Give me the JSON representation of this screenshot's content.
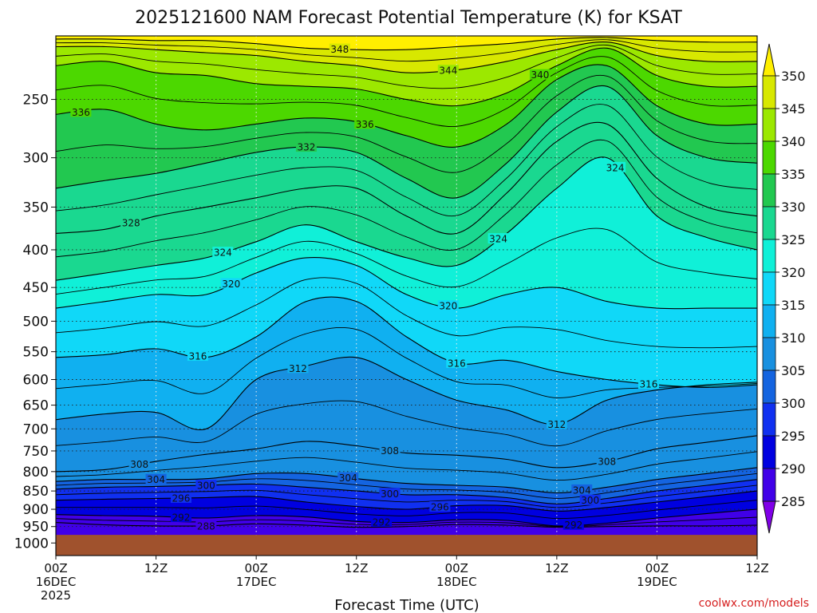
{
  "chart_data": {
    "type": "heatmap",
    "title": "2025121600 NAM Forecast Potential Temperature (K) for KSAT",
    "xlabel": "Forecast Time (UTC)",
    "ylabel": "",
    "y_scale": "log-pressure",
    "ylim": [
      1040,
      205
    ],
    "xlim": [
      0,
      84
    ],
    "y_ticks": [
      250,
      300,
      350,
      400,
      450,
      500,
      550,
      600,
      650,
      700,
      750,
      800,
      850,
      900,
      950,
      1000
    ],
    "x_ticks": [
      {
        "hour": 0,
        "lines": [
          "00Z",
          "16DEC",
          "2025"
        ]
      },
      {
        "hour": 12,
        "lines": [
          "12Z"
        ]
      },
      {
        "hour": 24,
        "lines": [
          "00Z",
          "17DEC"
        ]
      },
      {
        "hour": 36,
        "lines": [
          "12Z"
        ]
      },
      {
        "hour": 48,
        "lines": [
          "00Z",
          "18DEC"
        ]
      },
      {
        "hour": 60,
        "lines": [
          "12Z"
        ]
      },
      {
        "hour": 72,
        "lines": [
          "00Z",
          "19DEC"
        ]
      },
      {
        "hour": 84,
        "lines": [
          "12Z"
        ]
      }
    ],
    "grid": true,
    "surface_pressure": 975,
    "levels": [
      {
        "theta": 288,
        "p": [
          938,
          945,
          948,
          948,
          942,
          946,
          952,
          950,
          944,
          946,
          952,
          950,
          948,
          948,
          946
        ]
      },
      {
        "theta": 292,
        "p": [
          915,
          918,
          920,
          925,
          918,
          922,
          935,
          938,
          930,
          932,
          948,
          940,
          925,
          912,
          900
        ]
      },
      {
        "theta": 296,
        "p": [
          875,
          872,
          870,
          868,
          865,
          880,
          892,
          900,
          890,
          890,
          905,
          895,
          880,
          865,
          850
        ]
      },
      {
        "theta": 300,
        "p": [
          845,
          840,
          838,
          835,
          832,
          840,
          850,
          860,
          860,
          868,
          885,
          870,
          850,
          835,
          820
        ]
      },
      {
        "theta": 304,
        "p": [
          825,
          820,
          820,
          818,
          805,
          805,
          818,
          830,
          835,
          840,
          855,
          840,
          820,
          805,
          790
        ]
      },
      {
        "theta": 308,
        "p": [
          800,
          795,
          775,
          758,
          745,
          728,
          738,
          755,
          760,
          770,
          790,
          775,
          745,
          730,
          715
        ]
      },
      {
        "theta": 312,
        "p": [
          680,
          668,
          665,
          700,
          600,
          575,
          560,
          600,
          640,
          660,
          690,
          640,
          620,
          610,
          605
        ]
      },
      {
        "theta": 316,
        "p": [
          560,
          555,
          545,
          560,
          525,
          470,
          470,
          525,
          570,
          565,
          585,
          600,
          610,
          615,
          610
        ]
      },
      {
        "theta": 320,
        "p": [
          480,
          470,
          460,
          460,
          430,
          410,
          420,
          460,
          480,
          460,
          450,
          470,
          480,
          480,
          480
        ]
      },
      {
        "theta": 324,
        "p": [
          440,
          430,
          420,
          410,
          390,
          370,
          390,
          410,
          420,
          380,
          330,
          300,
          360,
          385,
          400
        ]
      },
      {
        "theta": 328,
        "p": [
          380,
          375,
          360,
          350,
          340,
          330,
          330,
          360,
          380,
          335,
          285,
          270,
          320,
          350,
          360
        ]
      },
      {
        "theta": 332,
        "p": [
          330,
          322,
          315,
          305,
          295,
          290,
          295,
          320,
          340,
          305,
          260,
          240,
          280,
          300,
          305
        ]
      },
      {
        "theta": 336,
        "p": [
          262,
          258,
          270,
          275,
          270,
          265,
          268,
          280,
          290,
          270,
          235,
          225,
          255,
          270,
          270
        ]
      },
      {
        "theta": 340,
        "p": [
          225,
          222,
          230,
          232,
          238,
          240,
          242,
          250,
          255,
          245,
          225,
          213,
          232,
          240,
          240
        ]
      },
      {
        "theta": 344,
        "p": [
          212,
          212,
          214,
          216,
          218,
          222,
          225,
          230,
          228,
          222,
          214,
          209,
          218,
          222,
          222
        ]
      },
      {
        "theta": 348,
        "p": [
          207,
          207,
          208,
          208,
          210,
          213,
          214,
          214,
          212,
          210,
          207,
          206,
          208,
          209,
          209
        ]
      }
    ],
    "contour_labels": [
      {
        "text": "348",
        "hour": 34,
        "theta": 348
      },
      {
        "text": "344",
        "hour": 47,
        "theta": 344
      },
      {
        "text": "340",
        "hour": 58,
        "theta": 340
      },
      {
        "text": "336",
        "hour": 3,
        "theta": 336
      },
      {
        "text": "336",
        "hour": 37,
        "theta": 336
      },
      {
        "text": "332",
        "hour": 30,
        "theta": 332
      },
      {
        "text": "328",
        "hour": 9,
        "theta": 328
      },
      {
        "text": "324",
        "hour": 20,
        "theta": 324
      },
      {
        "text": "324",
        "hour": 53,
        "theta": 324
      },
      {
        "text": "324",
        "hour": 67,
        "theta": 324
      },
      {
        "text": "320",
        "hour": 21,
        "theta": 320
      },
      {
        "text": "320",
        "hour": 47,
        "theta": 320
      },
      {
        "text": "316",
        "hour": 17,
        "theta": 316
      },
      {
        "text": "316",
        "hour": 48,
        "theta": 316
      },
      {
        "text": "316",
        "hour": 71,
        "theta": 316
      },
      {
        "text": "312",
        "hour": 29,
        "theta": 312
      },
      {
        "text": "312",
        "hour": 60,
        "theta": 312
      },
      {
        "text": "308",
        "hour": 10,
        "theta": 308
      },
      {
        "text": "308",
        "hour": 40,
        "theta": 308
      },
      {
        "text": "308",
        "hour": 66,
        "theta": 308
      },
      {
        "text": "304",
        "hour": 12,
        "theta": 304
      },
      {
        "text": "304",
        "hour": 35,
        "theta": 304
      },
      {
        "text": "304",
        "hour": 63,
        "theta": 304
      },
      {
        "text": "300",
        "hour": 18,
        "theta": 300
      },
      {
        "text": "300",
        "hour": 40,
        "theta": 300
      },
      {
        "text": "300",
        "hour": 64,
        "theta": 300
      },
      {
        "text": "296",
        "hour": 15,
        "theta": 296
      },
      {
        "text": "296",
        "hour": 46,
        "theta": 296
      },
      {
        "text": "292",
        "hour": 15,
        "theta": 292
      },
      {
        "text": "292",
        "hour": 39,
        "theta": 292
      },
      {
        "text": "292",
        "hour": 62,
        "theta": 292
      },
      {
        "text": "288",
        "hour": 18,
        "theta": 288
      }
    ],
    "colorbar": {
      "labels": [
        "350",
        "345",
        "340",
        "335",
        "330",
        "325",
        "320",
        "315",
        "310",
        "305",
        "300",
        "295",
        "290",
        "285"
      ],
      "colors": [
        "#ffef00",
        "#d8e800",
        "#9ce800",
        "#4cd800",
        "#22c850",
        "#1ad890",
        "#10f0d8",
        "#10d8f8",
        "#10b0f0",
        "#1890e0",
        "#1464e0",
        "#1030f0",
        "#0000e0",
        "#4000e8",
        "#8000e8"
      ]
    },
    "ground_color": "#a0522d",
    "credit": "coolwx.com/models"
  }
}
